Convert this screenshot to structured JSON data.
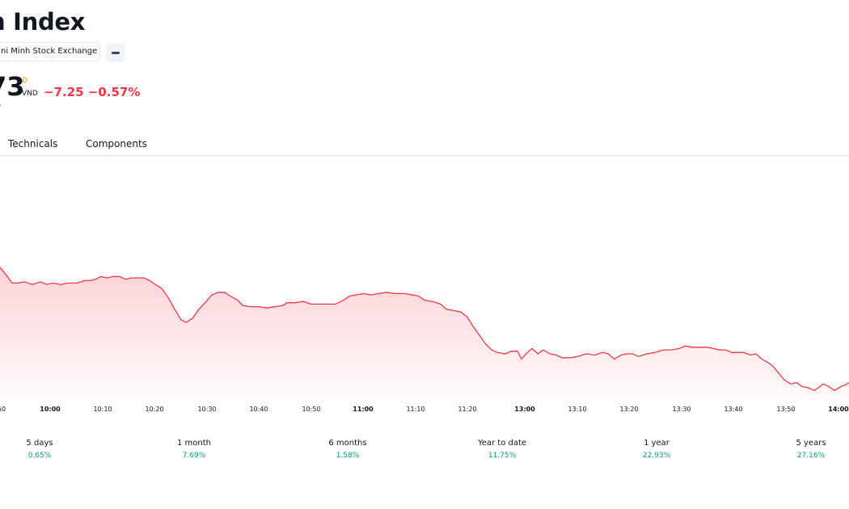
{
  "header": {
    "title": "n Index",
    "exchange": "ni Minh Stock Exchange",
    "price": "73",
    "market_status": "D",
    "currency": "VND",
    "change": "−7.25 −0.57%",
    "subline": "7"
  },
  "tabs": [
    {
      "label": "Technicals"
    },
    {
      "label": "Components"
    }
  ],
  "colors": {
    "line": "#f23645",
    "negative": "#f23645",
    "positive": "#089981",
    "status": "#f0a000"
  },
  "chart_data": {
    "type": "area",
    "x_ticks": [
      "50",
      "10:00",
      "10:10",
      "10:20",
      "10:30",
      "10:40",
      "10:50",
      "11:00",
      "11:10",
      "11:20",
      "13:00",
      "13:10",
      "13:20",
      "13:30",
      "13:40",
      "13:50",
      "14:00"
    ],
    "bold_ticks": [
      "10:00",
      "11:00",
      "13:00",
      "14:00"
    ],
    "y_range": [
      0,
      100
    ],
    "series": [
      {
        "values": [
          [
            0,
            100
          ],
          [
            8,
            94
          ],
          [
            15,
            88
          ],
          [
            22,
            88
          ],
          [
            30,
            89
          ],
          [
            40,
            87
          ],
          [
            50,
            89
          ],
          [
            58,
            87
          ],
          [
            65,
            88
          ],
          [
            75,
            87
          ],
          [
            85,
            88
          ],
          [
            95,
            88
          ],
          [
            105,
            90
          ],
          [
            112,
            90
          ],
          [
            118,
            91
          ],
          [
            125,
            93
          ],
          [
            132,
            92
          ],
          [
            140,
            93
          ],
          [
            148,
            93
          ],
          [
            155,
            91
          ],
          [
            162,
            92
          ],
          [
            170,
            92
          ],
          [
            178,
            92
          ],
          [
            185,
            90
          ],
          [
            192,
            87
          ],
          [
            200,
            84
          ],
          [
            208,
            77
          ],
          [
            216,
            68
          ],
          [
            224,
            60
          ],
          [
            230,
            58
          ],
          [
            238,
            61
          ],
          [
            246,
            68
          ],
          [
            255,
            74
          ],
          [
            262,
            79
          ],
          [
            270,
            81
          ],
          [
            278,
            81
          ],
          [
            285,
            78
          ],
          [
            294,
            75
          ],
          [
            300,
            71
          ],
          [
            310,
            70
          ],
          [
            320,
            70
          ],
          [
            330,
            69
          ],
          [
            340,
            70
          ],
          [
            350,
            71
          ],
          [
            355,
            73
          ],
          [
            365,
            73
          ],
          [
            375,
            74
          ],
          [
            385,
            72
          ],
          [
            395,
            72
          ],
          [
            405,
            72
          ],
          [
            415,
            72
          ],
          [
            425,
            75
          ],
          [
            432,
            78
          ],
          [
            440,
            79
          ],
          [
            450,
            80
          ],
          [
            458,
            79
          ],
          [
            468,
            80
          ],
          [
            478,
            81
          ],
          [
            488,
            80
          ],
          [
            500,
            80
          ],
          [
            510,
            79
          ],
          [
            518,
            78
          ],
          [
            525,
            75
          ],
          [
            535,
            74
          ],
          [
            545,
            72
          ],
          [
            552,
            68
          ],
          [
            562,
            67
          ],
          [
            570,
            66
          ],
          [
            578,
            62
          ],
          [
            585,
            55
          ],
          [
            592,
            49
          ],
          [
            600,
            42
          ],
          [
            608,
            37
          ],
          [
            615,
            35
          ],
          [
            625,
            34
          ],
          [
            632,
            36
          ],
          [
            640,
            36
          ],
          [
            645,
            30
          ],
          [
            652,
            35
          ],
          [
            658,
            38
          ],
          [
            665,
            34
          ],
          [
            672,
            37
          ],
          [
            680,
            34
          ],
          [
            688,
            33
          ],
          [
            695,
            31
          ],
          [
            705,
            31
          ],
          [
            715,
            32
          ],
          [
            725,
            34
          ],
          [
            735,
            33
          ],
          [
            745,
            35
          ],
          [
            752,
            34
          ],
          [
            760,
            30
          ],
          [
            768,
            33
          ],
          [
            775,
            34
          ],
          [
            782,
            34
          ],
          [
            790,
            32
          ],
          [
            800,
            34
          ],
          [
            810,
            35
          ],
          [
            820,
            37
          ],
          [
            830,
            37
          ],
          [
            840,
            38
          ],
          [
            848,
            40
          ],
          [
            855,
            39
          ],
          [
            865,
            39
          ],
          [
            875,
            39
          ],
          [
            882,
            38
          ],
          [
            890,
            37
          ],
          [
            898,
            37
          ],
          [
            905,
            35
          ],
          [
            912,
            35
          ],
          [
            920,
            35
          ],
          [
            928,
            33
          ],
          [
            935,
            34
          ],
          [
            942,
            30
          ],
          [
            948,
            28
          ],
          [
            955,
            25
          ],
          [
            962,
            20
          ],
          [
            970,
            14
          ],
          [
            978,
            11
          ],
          [
            985,
            12
          ],
          [
            992,
            9
          ],
          [
            1000,
            8
          ],
          [
            1007,
            6
          ],
          [
            1012,
            8
          ],
          [
            1018,
            11
          ],
          [
            1025,
            9
          ],
          [
            1032,
            6
          ],
          [
            1040,
            9
          ],
          [
            1048,
            11
          ],
          [
            1050,
            12
          ]
        ]
      }
    ]
  },
  "performance": [
    {
      "label": "5 days",
      "value": "0.65%"
    },
    {
      "label": "1 month",
      "value": "7.69%"
    },
    {
      "label": "6 months",
      "value": "1.58%"
    },
    {
      "label": "Year to date",
      "value": "11.75%"
    },
    {
      "label": "1 year",
      "value": "22.93%"
    },
    {
      "label": "5 years",
      "value": "27.16%"
    }
  ]
}
